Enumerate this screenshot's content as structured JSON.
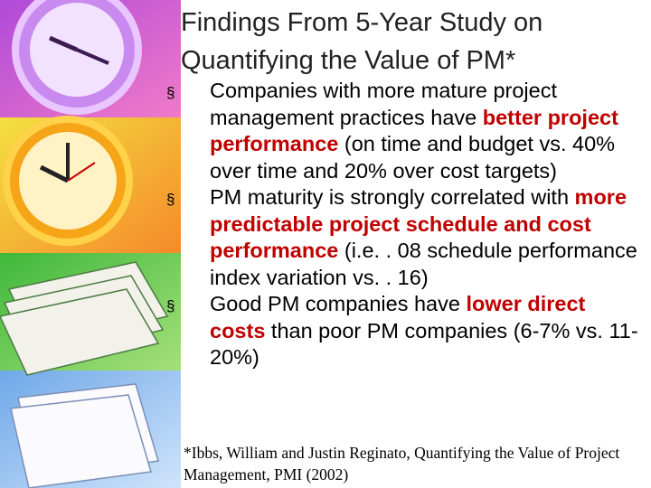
{
  "slide": {
    "title_lines": [
      "Findings From 5-Year Study on",
      "Quantifying the Value of PM*"
    ],
    "bullet_marker": "§",
    "emphasis_color": "#c00000",
    "bullets": [
      {
        "segments": [
          {
            "text": "Companies with more mature project management practices have ",
            "emphasis": false
          },
          {
            "text": "better project performance",
            "emphasis": true
          },
          {
            "text": " (on time and budget vs. 40% over time and 20% over cost targets)",
            "emphasis": false
          }
        ]
      },
      {
        "segments": [
          {
            "text": "PM maturity is strongly correlated with ",
            "emphasis": false
          },
          {
            "text": "more predictable project schedule and cost performance",
            "emphasis": true
          },
          {
            "text": " (i.e. . 08 schedule performance index variation vs. . 16)",
            "emphasis": false
          }
        ]
      },
      {
        "segments": [
          {
            "text": "Good PM companies have ",
            "emphasis": false
          },
          {
            "text": "lower direct costs",
            "emphasis": true
          },
          {
            "text": " than poor PM companies (6-7% vs. 11-20%)",
            "emphasis": false
          }
        ]
      }
    ],
    "footnote": "*Ibbs, William and Justin Reginato, Quantifying the Value of Project Management, PMI (2002)"
  }
}
